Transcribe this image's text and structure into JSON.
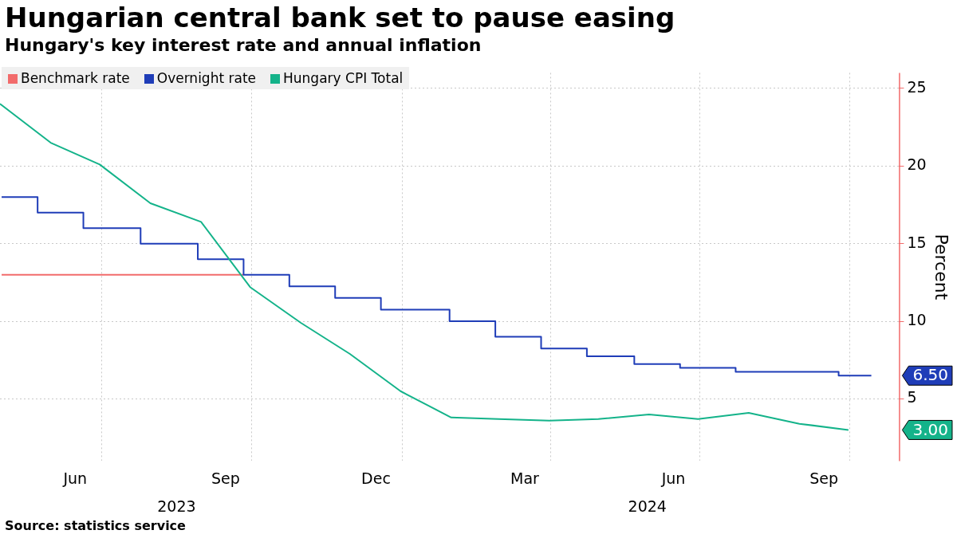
{
  "chart_data": {
    "type": "line",
    "title": "Hungarian central bank set to pause easing",
    "subtitle": "Hungary's key interest rate and annual inflation",
    "ylabel": "Percent",
    "xlim": [
      "2023-04-30",
      "2024-10-31"
    ],
    "xticks": [
      {
        "value": "2023-06-15",
        "label": "Jun"
      },
      {
        "value": "2023-07-01",
        "label": null
      },
      {
        "value": "2023-09-15",
        "label": "Sep"
      },
      {
        "value": "2023-10-01",
        "label": null
      },
      {
        "value": "2023-12-16",
        "label": "Dec"
      },
      {
        "value": "2024-01-01",
        "label": null
      },
      {
        "value": "2024-03-16",
        "label": "Mar"
      },
      {
        "value": "2024-04-01",
        "label": null
      },
      {
        "value": "2024-06-15",
        "label": "Jun"
      },
      {
        "value": "2024-07-01",
        "label": null
      },
      {
        "value": "2024-09-15",
        "label": "Sep"
      },
      {
        "value": "2024-10-01",
        "label": null
      }
    ],
    "x2lim": [
      "2023-04-30",
      "2024-10-31"
    ],
    "x2ticks": [
      {
        "value": "2023-08-16",
        "label": "2023"
      },
      {
        "value": "2024-05-30",
        "label": "2024"
      }
    ],
    "ylim": [
      1,
      26
    ],
    "yticks": [
      5,
      10,
      15,
      20,
      25
    ],
    "grid": true,
    "legend": "top left",
    "series": [
      {
        "name": "Benchmark rate",
        "type": "step",
        "color": "#f26b6b",
        "x": [
          "2023-05-01",
          "2023-09-26"
        ],
        "values": [
          13,
          13
        ]
      },
      {
        "name": "Overnight rate",
        "type": "step",
        "color": "#1f3db8",
        "x": [
          "2023-05-01",
          "2023-05-23",
          "2023-06-20",
          "2023-07-25",
          "2023-08-29",
          "2023-09-26",
          "2023-10-24",
          "2023-11-21",
          "2023-12-19",
          "2024-01-30",
          "2024-02-27",
          "2024-03-26",
          "2024-04-23",
          "2024-05-22",
          "2024-06-19",
          "2024-07-23",
          "2024-09-24",
          "2024-10-14"
        ],
        "values": [
          18,
          17,
          16,
          15,
          14,
          13,
          12.25,
          11.5,
          10.75,
          10,
          9,
          8.25,
          7.75,
          7.25,
          7,
          6.75,
          6.5,
          6.5
        ]
      },
      {
        "name": "Hungary CPI Total",
        "type": "line",
        "color": "#14b38a",
        "x": [
          "2023-04-30",
          "2023-05-31",
          "2023-06-30",
          "2023-07-31",
          "2023-08-31",
          "2023-09-30",
          "2023-10-31",
          "2023-11-30",
          "2023-12-31",
          "2024-01-31",
          "2024-02-29",
          "2024-03-31",
          "2024-04-30",
          "2024-05-31",
          "2024-06-30",
          "2024-07-31",
          "2024-08-31",
          "2024-09-30"
        ],
        "values": [
          24,
          21.5,
          20.1,
          17.6,
          16.4,
          12.2,
          9.9,
          7.9,
          5.5,
          3.8,
          3.7,
          3.6,
          3.7,
          4,
          3.7,
          4.1,
          3.4,
          3
        ]
      }
    ],
    "annotations": [
      "Source: statistics service",
      "6.50",
      "3.00"
    ]
  }
}
